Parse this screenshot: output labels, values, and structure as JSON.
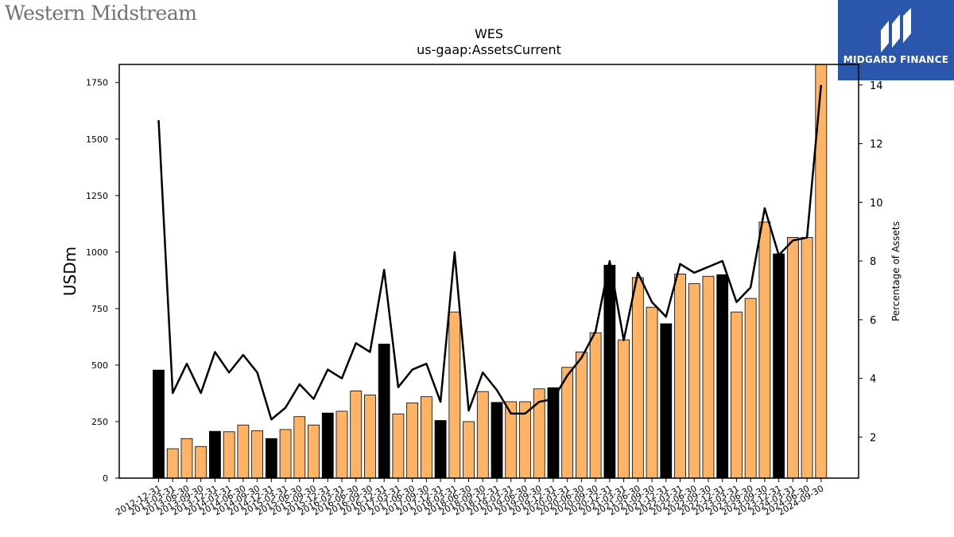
{
  "branding": {
    "company_logo_text": "Western Midstream",
    "finance_badge_text": "MIDGARD FINANCE"
  },
  "chart_data": {
    "type": "bar",
    "title": "WES",
    "subtitle": "us-gaap:AssetsCurrent",
    "ylabel": "USDm",
    "y2label": "Percentage of Assets",
    "ylim": [
      0,
      1830
    ],
    "y2lim": [
      0.6,
      14.7
    ],
    "yticks": [
      0,
      250,
      500,
      750,
      1000,
      1250,
      1500,
      1750
    ],
    "y2ticks": [
      2,
      4,
      6,
      8,
      10,
      12,
      14
    ],
    "colors": {
      "annual_bar": "#000000",
      "quarterly_bar": "#ffb366",
      "line": "#000000"
    },
    "categories": [
      "2012-12-31",
      "2013-03-31",
      "2013-06-30",
      "2013-09-30",
      "2013-12-31",
      "2014-03-31",
      "2014-06-30",
      "2014-09-30",
      "2014-12-31",
      "2015-03-31",
      "2015-06-30",
      "2015-09-30",
      "2015-12-31",
      "2016-03-31",
      "2016-06-30",
      "2016-09-30",
      "2016-12-31",
      "2017-03-31",
      "2017-06-30",
      "2017-09-30",
      "2017-12-31",
      "2018-03-31",
      "2018-06-30",
      "2018-09-30",
      "2018-12-31",
      "2019-03-31",
      "2019-06-30",
      "2019-09-30",
      "2019-12-31",
      "2020-03-31",
      "2020-06-30",
      "2020-09-30",
      "2020-12-31",
      "2021-03-31",
      "2021-06-30",
      "2021-09-30",
      "2021-12-31",
      "2022-03-31",
      "2022-06-30",
      "2022-09-30",
      "2022-12-31",
      "2023-03-31",
      "2023-06-30",
      "2023-09-30",
      "2023-12-31",
      "2024-03-31",
      "2024-06-30",
      "2024-09-30"
    ],
    "series": [
      {
        "kind": "bar",
        "values": [
          478,
          130,
          175,
          140,
          207,
          205,
          235,
          210,
          175,
          215,
          272,
          235,
          288,
          296,
          386,
          368,
          593,
          284,
          333,
          360,
          255,
          735,
          250,
          383,
          335,
          338,
          338,
          395,
          400,
          490,
          558,
          643,
          942,
          612,
          887,
          756,
          683,
          903,
          860,
          893,
          900,
          735,
          795,
          1133,
          992,
          1065,
          1065,
          1830
        ],
        "period": [
          "annual",
          "quarterly",
          "quarterly",
          "quarterly",
          "annual",
          "quarterly",
          "quarterly",
          "quarterly",
          "annual",
          "quarterly",
          "quarterly",
          "quarterly",
          "annual",
          "quarterly",
          "quarterly",
          "quarterly",
          "annual",
          "quarterly",
          "quarterly",
          "quarterly",
          "annual",
          "quarterly",
          "quarterly",
          "quarterly",
          "annual",
          "quarterly",
          "quarterly",
          "quarterly",
          "annual",
          "quarterly",
          "quarterly",
          "quarterly",
          "annual",
          "quarterly",
          "quarterly",
          "quarterly",
          "annual",
          "quarterly",
          "quarterly",
          "quarterly",
          "annual",
          "quarterly",
          "quarterly",
          "quarterly",
          "annual",
          "quarterly",
          "quarterly",
          "quarterly"
        ]
      },
      {
        "kind": "line",
        "axis": "right",
        "values": [
          12.8,
          3.5,
          4.5,
          3.5,
          4.9,
          4.2,
          4.8,
          4.2,
          2.6,
          3.0,
          3.8,
          3.3,
          4.3,
          4.0,
          5.2,
          4.9,
          7.7,
          3.7,
          4.3,
          4.5,
          3.2,
          8.3,
          2.9,
          4.2,
          3.6,
          2.8,
          2.8,
          3.2,
          3.3,
          4.1,
          4.7,
          5.6,
          8.0,
          5.3,
          7.6,
          6.6,
          6.1,
          7.9,
          7.6,
          7.8,
          8.0,
          6.6,
          7.1,
          9.8,
          8.2,
          8.7,
          8.8,
          14.0
        ]
      }
    ]
  }
}
